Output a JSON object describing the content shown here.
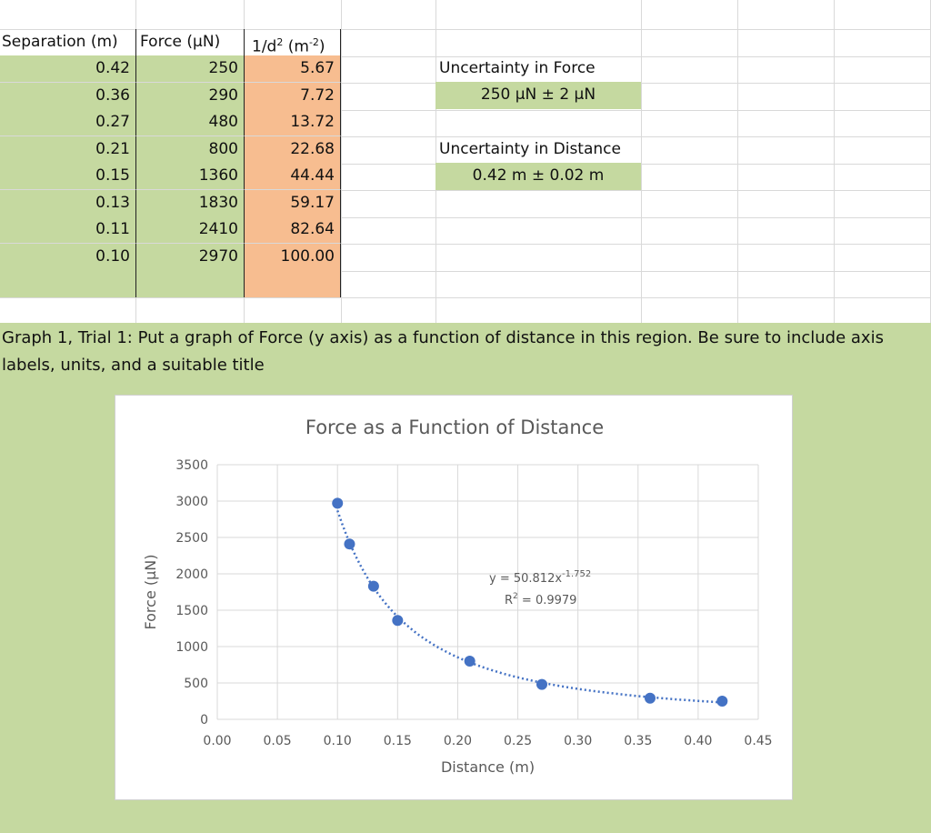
{
  "table": {
    "headers": {
      "separation": "Separation (m)",
      "force": "Force (µN)",
      "inv_d2_base": "1/d",
      "inv_d2_sup": "2",
      "inv_d2_unit_open": " (m",
      "inv_d2_unit_sup": "-2",
      "inv_d2_unit_close": ")"
    },
    "rows": [
      {
        "separation": "0.42",
        "force": "250",
        "inv_d2": "5.67"
      },
      {
        "separation": "0.36",
        "force": "290",
        "inv_d2": "7.72"
      },
      {
        "separation": "0.27",
        "force": "480",
        "inv_d2": "13.72"
      },
      {
        "separation": "0.21",
        "force": "800",
        "inv_d2": "22.68"
      },
      {
        "separation": "0.15",
        "force": "1360",
        "inv_d2": "44.44"
      },
      {
        "separation": "0.13",
        "force": "1830",
        "inv_d2": "59.17"
      },
      {
        "separation": "0.11",
        "force": "2410",
        "inv_d2": "82.64"
      },
      {
        "separation": "0.10",
        "force": "2970",
        "inv_d2": "100.00"
      }
    ]
  },
  "uncertainty": {
    "force_label": "Uncertainty in Force",
    "force_value": "250 µN ± 2 µN",
    "distance_label": "Uncertainty in Distance",
    "distance_value": "0.42 m  ± 0.02 m"
  },
  "instructions": "Graph 1, Trial 1: Put a graph of Force (y axis) as a function of distance in this region.  Be sure to include axis labels, units, and a suitable title",
  "colors": {
    "green_fill": "#c5d9a0",
    "orange_fill": "#f7bd90",
    "marker": "#4472c4"
  },
  "chart_data": {
    "type": "scatter",
    "title": "Force as a Function of Distance",
    "xlabel": "Distance (m)",
    "ylabel": "Force (µN)",
    "xlim": [
      0,
      0.45
    ],
    "ylim": [
      0,
      3500
    ],
    "x_ticks": [
      "0.00",
      "0.05",
      "0.10",
      "0.15",
      "0.20",
      "0.25",
      "0.30",
      "0.35",
      "0.40",
      "0.45"
    ],
    "y_ticks": [
      "0",
      "500",
      "1000",
      "1500",
      "2000",
      "2500",
      "3000",
      "3500"
    ],
    "grid": true,
    "series": [
      {
        "x": [
          0.42,
          0.36,
          0.27,
          0.21,
          0.15,
          0.13,
          0.11,
          0.1
        ],
        "y": [
          250,
          290,
          480,
          800,
          1360,
          1830,
          2410,
          2970
        ]
      }
    ],
    "trendline": {
      "type": "power",
      "coefficient": 50.812,
      "exponent": -1.752,
      "style": "dotted",
      "equation_base": "y = 50.812x",
      "equation_exponent": "-1.752",
      "r2_base": "R",
      "r2_sup": "2",
      "r2_value": " = 0.9979"
    }
  }
}
